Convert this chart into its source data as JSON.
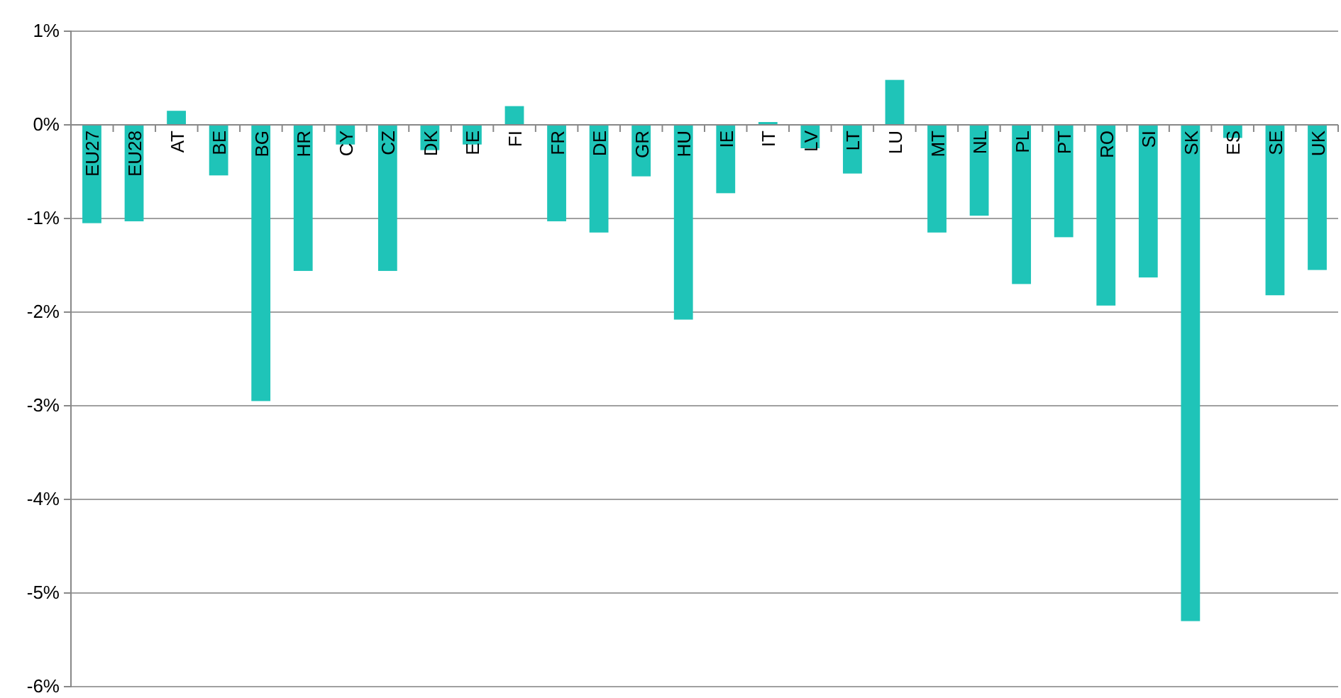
{
  "chart_data": {
    "type": "bar",
    "categories": [
      "EU27",
      "EU28",
      "AT",
      "BE",
      "BG",
      "HR",
      "CY",
      "CZ",
      "DK",
      "EE",
      "FI",
      "FR",
      "DE",
      "GR",
      "HU",
      "IE",
      "IT",
      "LV",
      "LT",
      "LU",
      "MT",
      "NL",
      "PL",
      "PT",
      "RO",
      "SI",
      "SK",
      "ES",
      "SE",
      "UK"
    ],
    "values": [
      -1.05,
      -1.03,
      0.15,
      -0.54,
      -2.95,
      -1.56,
      -0.21,
      -1.56,
      -0.27,
      -0.21,
      0.2,
      -1.03,
      -1.15,
      -0.55,
      -2.08,
      -0.73,
      0.03,
      -0.25,
      -0.52,
      0.48,
      -1.15,
      -0.97,
      -1.7,
      -1.2,
      -1.93,
      -1.63,
      -5.3,
      -0.14,
      -1.82,
      -1.55
    ],
    "color": "#1fc4b8",
    "ylim": [
      -6,
      1
    ],
    "yticks": [
      {
        "value": 1,
        "label": "1%"
      },
      {
        "value": 0,
        "label": "0%"
      },
      {
        "value": -1,
        "label": "-1%"
      },
      {
        "value": -2,
        "label": "-2%"
      },
      {
        "value": -3,
        "label": "-3%"
      },
      {
        "value": -4,
        "label": "-4%"
      },
      {
        "value": -5,
        "label": "-5%"
      },
      {
        "value": -6,
        "label": "-6%"
      }
    ],
    "grid": "y"
  }
}
